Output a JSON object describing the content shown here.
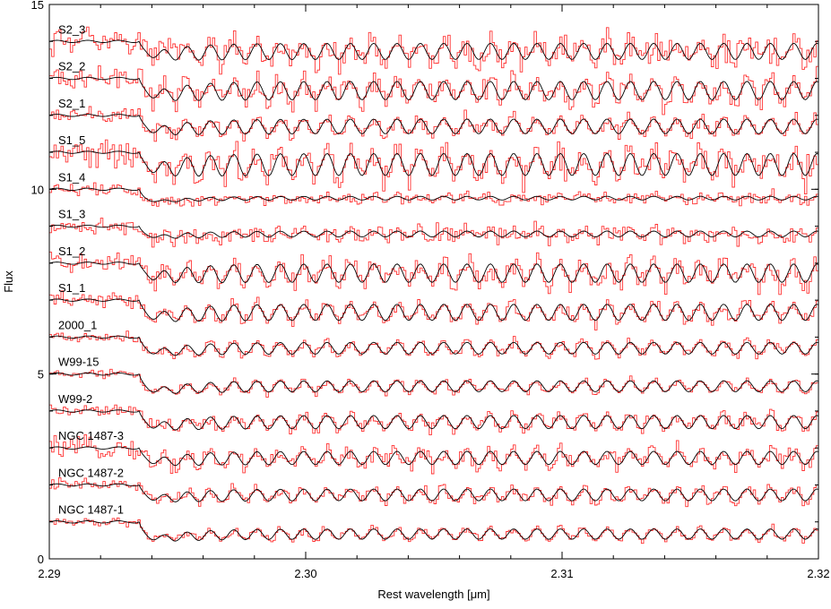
{
  "chart_data": {
    "type": "line",
    "xlabel": "Rest wavelength [μm]",
    "ylabel": "Flux",
    "xlim": [
      2.29,
      2.32
    ],
    "ylim": [
      0,
      15
    ],
    "x_ticks": [
      {
        "value": 2.29,
        "label": "2.29"
      },
      {
        "value": 2.3,
        "label": "2.30"
      },
      {
        "value": 2.31,
        "label": "2.31"
      },
      {
        "value": 2.32,
        "label": "2.32"
      }
    ],
    "y_ticks": [
      {
        "value": 0,
        "label": "0"
      },
      {
        "value": 5,
        "label": "5"
      },
      {
        "value": 10,
        "label": "10"
      },
      {
        "value": 15,
        "label": "15"
      }
    ],
    "grid": false,
    "legend": "none",
    "band_head_wavelength": 2.2935,
    "series_styles": {
      "observed": {
        "color": "#ff3333",
        "style": "step"
      },
      "model": {
        "color": "#000000",
        "style": "line"
      }
    },
    "spectra": [
      {
        "label": "NGC 1487-1",
        "continuum": 1.0,
        "break_depth": 0.55,
        "oscillation": 0.14,
        "noise": 0.08
      },
      {
        "label": "NGC 1487-2",
        "continuum": 2.0,
        "break_depth": 0.45,
        "oscillation": 0.16,
        "noise": 0.12
      },
      {
        "label": "NGC 1487-3",
        "continuum": 3.0,
        "break_depth": 0.45,
        "oscillation": 0.18,
        "noise": 0.18
      },
      {
        "label": "W99-2",
        "continuum": 4.0,
        "break_depth": 0.5,
        "oscillation": 0.18,
        "noise": 0.12
      },
      {
        "label": "W99-15",
        "continuum": 5.0,
        "break_depth": 0.55,
        "oscillation": 0.15,
        "noise": 0.08
      },
      {
        "label": "2000_1",
        "continuum": 6.0,
        "break_depth": 0.5,
        "oscillation": 0.16,
        "noise": 0.1
      },
      {
        "label": "S1_1",
        "continuum": 7.0,
        "break_depth": 0.55,
        "oscillation": 0.22,
        "noise": 0.14
      },
      {
        "label": "S1_2",
        "continuum": 8.0,
        "break_depth": 0.45,
        "oscillation": 0.25,
        "noise": 0.22
      },
      {
        "label": "S1_3",
        "continuum": 9.0,
        "break_depth": 0.35,
        "oscillation": 0.08,
        "noise": 0.16
      },
      {
        "label": "S1_4",
        "continuum": 10.0,
        "break_depth": 0.4,
        "oscillation": 0.05,
        "noise": 0.12
      },
      {
        "label": "S1_5",
        "continuum": 11.0,
        "break_depth": 0.55,
        "oscillation": 0.3,
        "noise": 0.3
      },
      {
        "label": "S2_1",
        "continuum": 12.0,
        "break_depth": 0.5,
        "oscillation": 0.2,
        "noise": 0.14
      },
      {
        "label": "S2_2",
        "continuum": 13.0,
        "break_depth": 0.55,
        "oscillation": 0.25,
        "noise": 0.24
      },
      {
        "label": "S2_3",
        "continuum": 14.0,
        "break_depth": 0.45,
        "oscillation": 0.22,
        "noise": 0.28
      }
    ]
  }
}
